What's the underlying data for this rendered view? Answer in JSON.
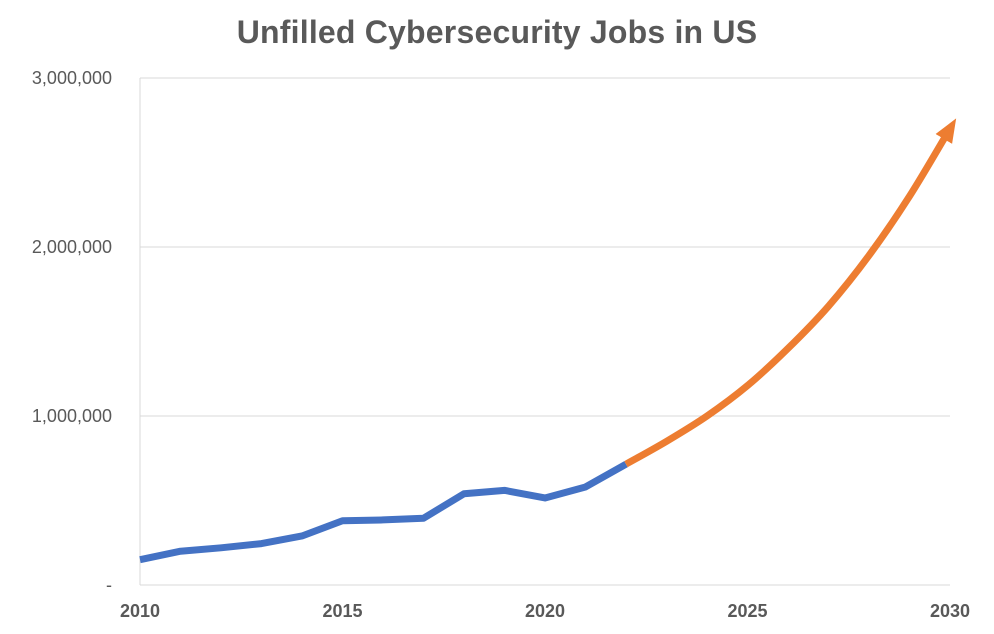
{
  "colors": {
    "historical": "#4472C4",
    "projected": "#ED7D31",
    "gridline": "#D9D9D9",
    "text": "#595959"
  },
  "chart_data": {
    "type": "line",
    "title": "Unfilled Cybersecurity Jobs in US",
    "xlabel": "",
    "ylabel": "",
    "xlim": [
      2010,
      2030
    ],
    "ylim": [
      0,
      3000000
    ],
    "grid": true,
    "y_ticks": [
      {
        "value": 0,
        "label": "-"
      },
      {
        "value": 1000000,
        "label": "1,000,000"
      },
      {
        "value": 2000000,
        "label": "2,000,000"
      },
      {
        "value": 3000000,
        "label": "3,000,000"
      }
    ],
    "x_ticks": [
      {
        "value": 2010,
        "label": "2010"
      },
      {
        "value": 2015,
        "label": "2015"
      },
      {
        "value": 2020,
        "label": "2020"
      },
      {
        "value": 2025,
        "label": "2025"
      },
      {
        "value": 2030,
        "label": "2030"
      }
    ],
    "series": [
      {
        "kind": "historical",
        "x": [
          2010,
          2011,
          2012,
          2013,
          2014,
          2015,
          2016,
          2017,
          2018,
          2019,
          2020,
          2021,
          2022
        ],
        "values": [
          150000,
          200000,
          220000,
          245000,
          290000,
          380000,
          385000,
          395000,
          540000,
          560000,
          515000,
          580000,
          715000
        ]
      },
      {
        "kind": "projected",
        "x": [
          2022,
          2023,
          2024,
          2025,
          2026,
          2027,
          2028,
          2029,
          2030
        ],
        "values": [
          715000,
          850000,
          1000000,
          1180000,
          1400000,
          1650000,
          1950000,
          2300000,
          2700000
        ]
      }
    ]
  }
}
